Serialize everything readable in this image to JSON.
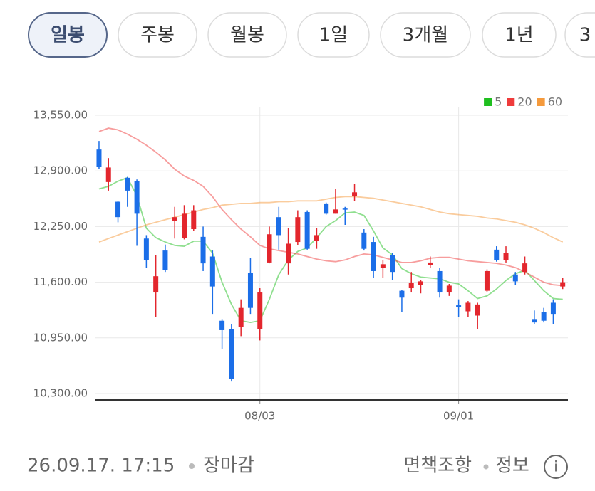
{
  "tabs": [
    "일봉",
    "주봉",
    "월봉",
    "1일",
    "3개월",
    "1년",
    "3"
  ],
  "selected_tab": 0,
  "chart_data": {
    "type": "candlestick",
    "categories": [
      null,
      null,
      null,
      null,
      null,
      null,
      null,
      null,
      null,
      null,
      null,
      null,
      null,
      null,
      null,
      null,
      null,
      "08/03",
      null,
      null,
      null,
      null,
      null,
      null,
      null,
      null,
      null,
      null,
      null,
      null,
      null,
      null,
      null,
      null,
      null,
      null,
      null,
      null,
      "09/01",
      null,
      null,
      null,
      null,
      null,
      null,
      null,
      null,
      null,
      null,
      null
    ],
    "open": [
      13150,
      12770,
      12540,
      12820,
      12780,
      12110,
      11480,
      11970,
      12320,
      12120,
      12220,
      12130,
      11900,
      11150,
      11050,
      11080,
      11710,
      11050,
      11830,
      12360,
      11820,
      12070,
      12420,
      12080,
      12520,
      12400,
      12460,
      12610,
      12180,
      12070,
      11770,
      11920,
      11500,
      11530,
      11570,
      11800,
      11730,
      11480,
      11330,
      11260,
      11210,
      11500,
      11980,
      11860,
      11690,
      11720,
      11170,
      11250,
      11360,
      11550
    ],
    "high": [
      13250,
      13050,
      12550,
      12830,
      12800,
      12150,
      11920,
      12040,
      12480,
      12500,
      12500,
      12250,
      11970,
      11170,
      11110,
      11400,
      11880,
      11530,
      12250,
      12480,
      12230,
      12440,
      12440,
      12230,
      12530,
      12690,
      12480,
      12750,
      12220,
      12130,
      11860,
      11940,
      11510,
      11720,
      11630,
      11900,
      11770,
      11580,
      11400,
      11380,
      11360,
      11750,
      12020,
      12020,
      11720,
      11900,
      11270,
      11300,
      11400,
      11650
    ],
    "low": [
      12920,
      12670,
      12300,
      12480,
      12025,
      11770,
      11190,
      11720,
      12110,
      12100,
      12200,
      11730,
      11230,
      10820,
      10440,
      10970,
      11230,
      10920,
      11820,
      11980,
      11690,
      12030,
      11980,
      11990,
      12390,
      12400,
      12270,
      12550,
      11970,
      11650,
      11650,
      11630,
      11250,
      11480,
      11470,
      11770,
      11420,
      11440,
      11190,
      11190,
      11050,
      11480,
      11840,
      11830,
      11570,
      11690,
      11110,
      11130,
      11110,
      11520
    ],
    "close": [
      12950,
      12940,
      12360,
      12670,
      12400,
      11860,
      11670,
      11740,
      12360,
      12400,
      12440,
      11820,
      11550,
      11040,
      10470,
      11300,
      11300,
      11480,
      12160,
      12150,
      12050,
      12360,
      11990,
      12150,
      12400,
      12450,
      12450,
      12650,
      11990,
      11730,
      11810,
      11720,
      11420,
      11590,
      11610,
      11830,
      11480,
      11560,
      11310,
      11360,
      11340,
      11730,
      11860,
      11940,
      11610,
      11820,
      11130,
      11150,
      11230,
      11600
    ],
    "up_color": "#e3262d",
    "down_color": "#1b6ee8",
    "series": [
      {
        "name": "5",
        "color": "#1fbf1f",
        "values": [
          12690,
          12720,
          12780,
          12820,
          12610,
          12230,
          12120,
          12070,
          12030,
          12020,
          12080,
          12080,
          11940,
          11600,
          11340,
          11150,
          11130,
          11150,
          11400,
          11690,
          11860,
          11960,
          12000,
          12120,
          12250,
          12320,
          12410,
          12420,
          12380,
          12200,
          12000,
          11920,
          11760,
          11700,
          11660,
          11650,
          11640,
          11600,
          11580,
          11500,
          11410,
          11440,
          11520,
          11620,
          11700,
          11740,
          11620,
          11500,
          11410,
          11400
        ]
      },
      {
        "name": "20",
        "color": "#ef3b3b",
        "values": [
          13360,
          13400,
          13380,
          13330,
          13270,
          13200,
          13120,
          13030,
          12920,
          12840,
          12790,
          12720,
          12600,
          12450,
          12330,
          12220,
          12130,
          12030,
          11990,
          11970,
          11950,
          11930,
          11900,
          11870,
          11850,
          11840,
          11860,
          11900,
          11930,
          11920,
          11890,
          11860,
          11830,
          11830,
          11850,
          11880,
          11890,
          11890,
          11870,
          11850,
          11840,
          11830,
          11820,
          11800,
          11770,
          11720,
          11660,
          11600,
          11570,
          11560
        ]
      },
      {
        "name": "60",
        "color": "#f59a3c",
        "values": [
          12070,
          12110,
          12150,
          12190,
          12230,
          12270,
          12300,
          12330,
          12360,
          12390,
          12420,
          12450,
          12470,
          12500,
          12510,
          12520,
          12520,
          12530,
          12530,
          12540,
          12540,
          12550,
          12550,
          12550,
          12570,
          12590,
          12600,
          12600,
          12590,
          12580,
          12560,
          12540,
          12520,
          12500,
          12480,
          12450,
          12420,
          12400,
          12390,
          12380,
          12370,
          12350,
          12340,
          12320,
          12300,
          12270,
          12230,
          12180,
          12120,
          12070
        ]
      }
    ],
    "ylim": [
      10225,
      13650
    ],
    "yticks": [
      {
        "value": 10300,
        "label": "10,300.00"
      },
      {
        "value": 10950,
        "label": "10,950.00"
      },
      {
        "value": 11600,
        "label": "11,600.00"
      },
      {
        "value": 12250,
        "label": "12,250.00"
      },
      {
        "value": 12900,
        "label": "12,900.00"
      },
      {
        "value": 13550,
        "label": "13,550.00"
      }
    ],
    "grid": true,
    "legend": "top-right"
  },
  "footer": {
    "timestamp": "26.09.17. 17:15",
    "status": "장마감",
    "disclaimer": "면책조항",
    "info": "정보",
    "info_icon": "i"
  }
}
